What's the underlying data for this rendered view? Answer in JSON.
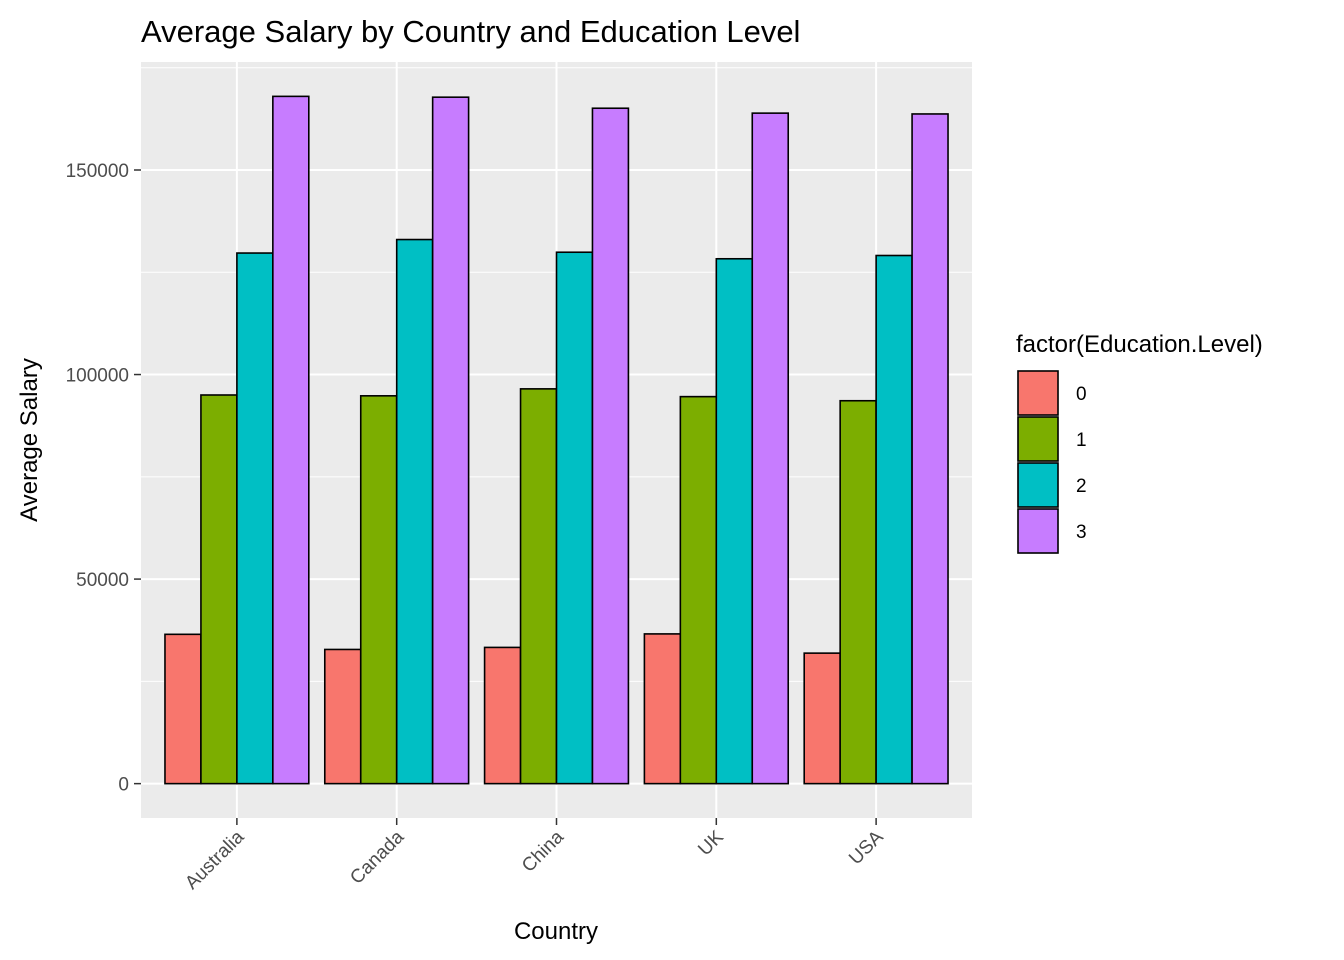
{
  "chart_data": {
    "type": "bar",
    "title": "Average Salary by Country and Education Level",
    "xlabel": "Country",
    "ylabel": "Average Salary",
    "categories": [
      "Australia",
      "Canada",
      "China",
      "UK",
      "USA"
    ],
    "series": [
      {
        "name": "0",
        "color": "#F8766D",
        "values": [
          36500,
          32800,
          33300,
          36600,
          31900
        ]
      },
      {
        "name": "1",
        "color": "#7CAE00",
        "values": [
          95000,
          94800,
          96500,
          94600,
          93600
        ]
      },
      {
        "name": "2",
        "color": "#00BFC4",
        "values": [
          129700,
          133000,
          129900,
          128300,
          129100
        ]
      },
      {
        "name": "3",
        "color": "#C77CFF",
        "values": [
          168000,
          167800,
          165100,
          163900,
          163700
        ]
      }
    ],
    "yticks": [
      0,
      50000,
      100000,
      150000
    ],
    "ytick_labels": [
      "0",
      "50000",
      "100000",
      "150000"
    ],
    "ylim": [
      -8400,
      176400
    ],
    "legend": {
      "title": "factor(Education.Level)",
      "placement": "right"
    },
    "grid": true,
    "panel_background": "#EBEBEB",
    "bar_outline": "#000000"
  }
}
